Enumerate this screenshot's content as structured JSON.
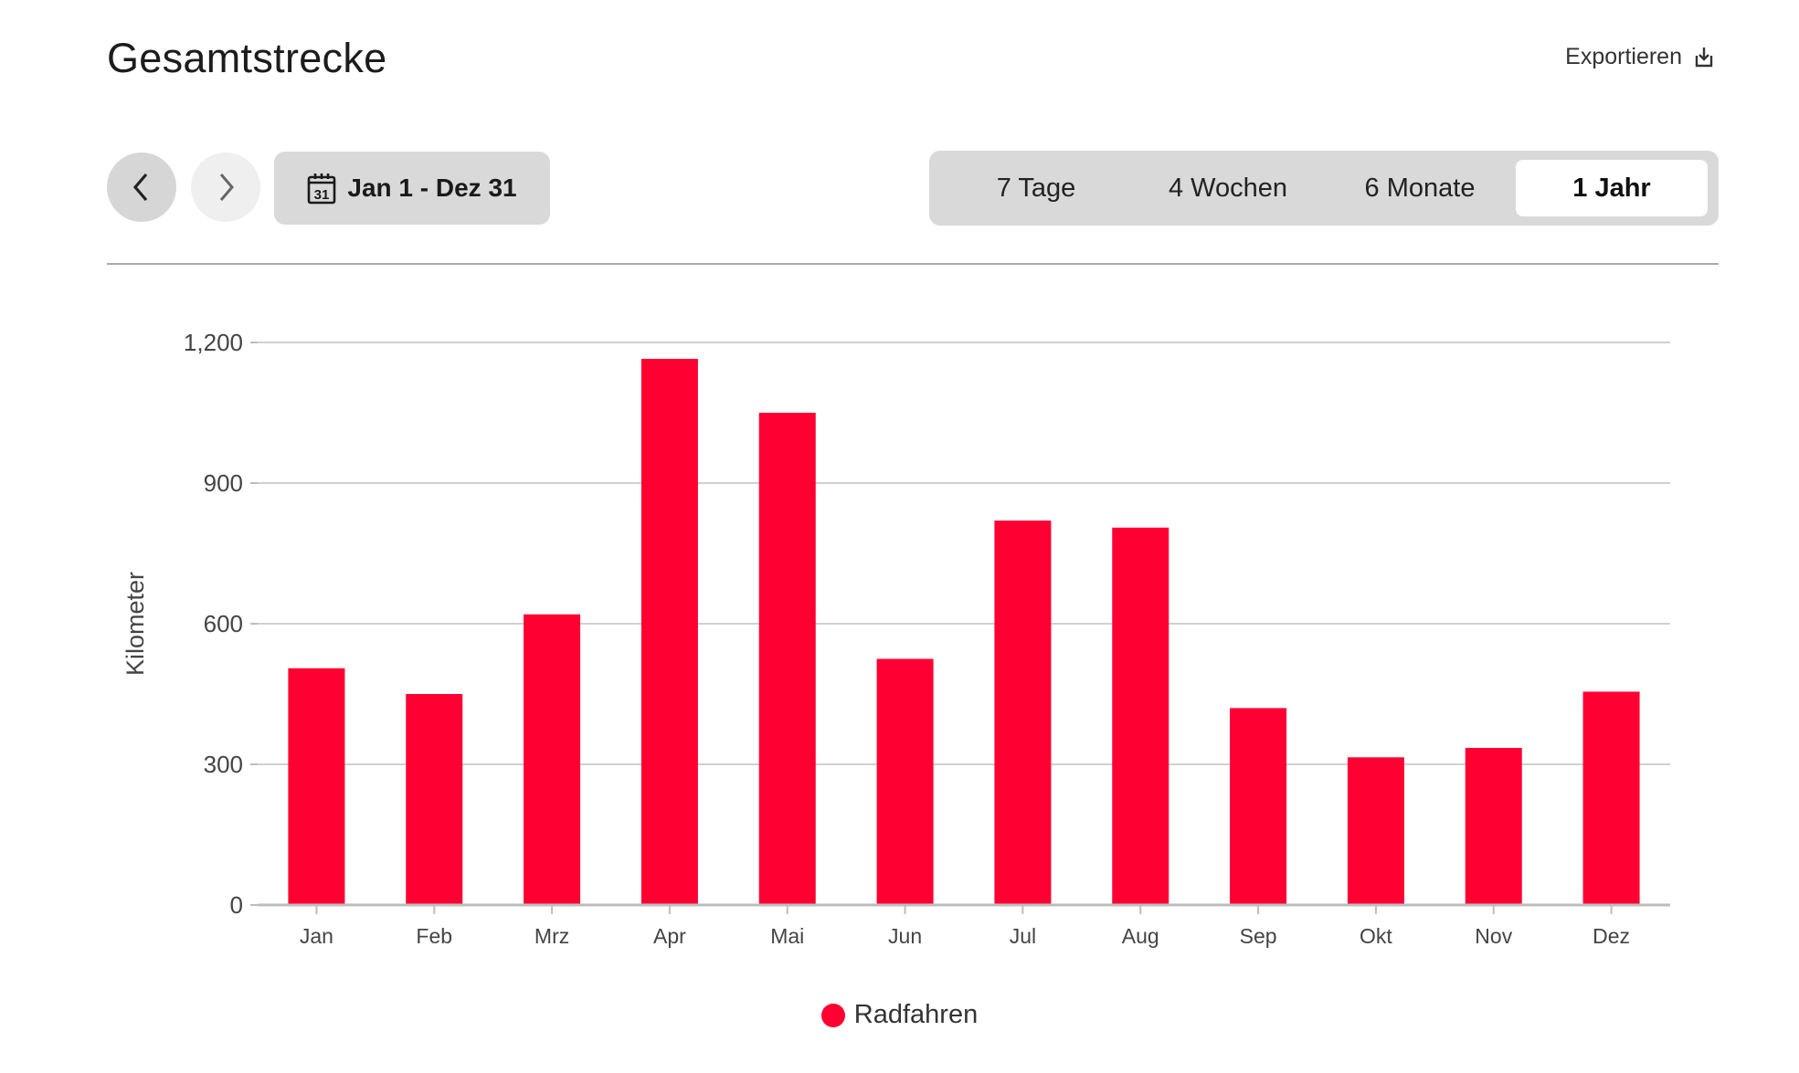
{
  "header": {
    "title": "Gesamtstrecke",
    "export_label": "Exportieren",
    "export_icon": "export-download-icon"
  },
  "toolbar": {
    "prev_icon": "chevron-left-icon",
    "next_icon": "chevron-right-icon",
    "calendar_icon": "calendar-icon",
    "calendar_day": "31",
    "date_range": "Jan 1 - Dez 31",
    "periods": [
      {
        "label": "7 Tage",
        "active": false
      },
      {
        "label": "4 Wochen",
        "active": false
      },
      {
        "label": "6 Monate",
        "active": false
      },
      {
        "label": "1 Jahr",
        "active": true
      }
    ]
  },
  "colors": {
    "bar": "#ff0033",
    "grid": "#d0d0d0",
    "axis": "#bdbdbd"
  },
  "chart_data": {
    "type": "bar",
    "categories": [
      "Jan",
      "Feb",
      "Mrz",
      "Apr",
      "Mai",
      "Jun",
      "Jul",
      "Aug",
      "Sep",
      "Okt",
      "Nov",
      "Dez"
    ],
    "series": [
      {
        "name": "Radfahren",
        "values": [
          505,
          450,
          620,
          1165,
          1050,
          525,
          820,
          805,
          420,
          315,
          335,
          455
        ]
      }
    ],
    "ylabel": "Kilometer",
    "ylim": [
      0,
      1200
    ],
    "yticks": [
      0,
      300,
      600,
      900,
      1200
    ],
    "ytick_labels": [
      "0",
      "300",
      "600",
      "900",
      "1,200"
    ],
    "grid": true,
    "legend_position": "bottom-center"
  }
}
